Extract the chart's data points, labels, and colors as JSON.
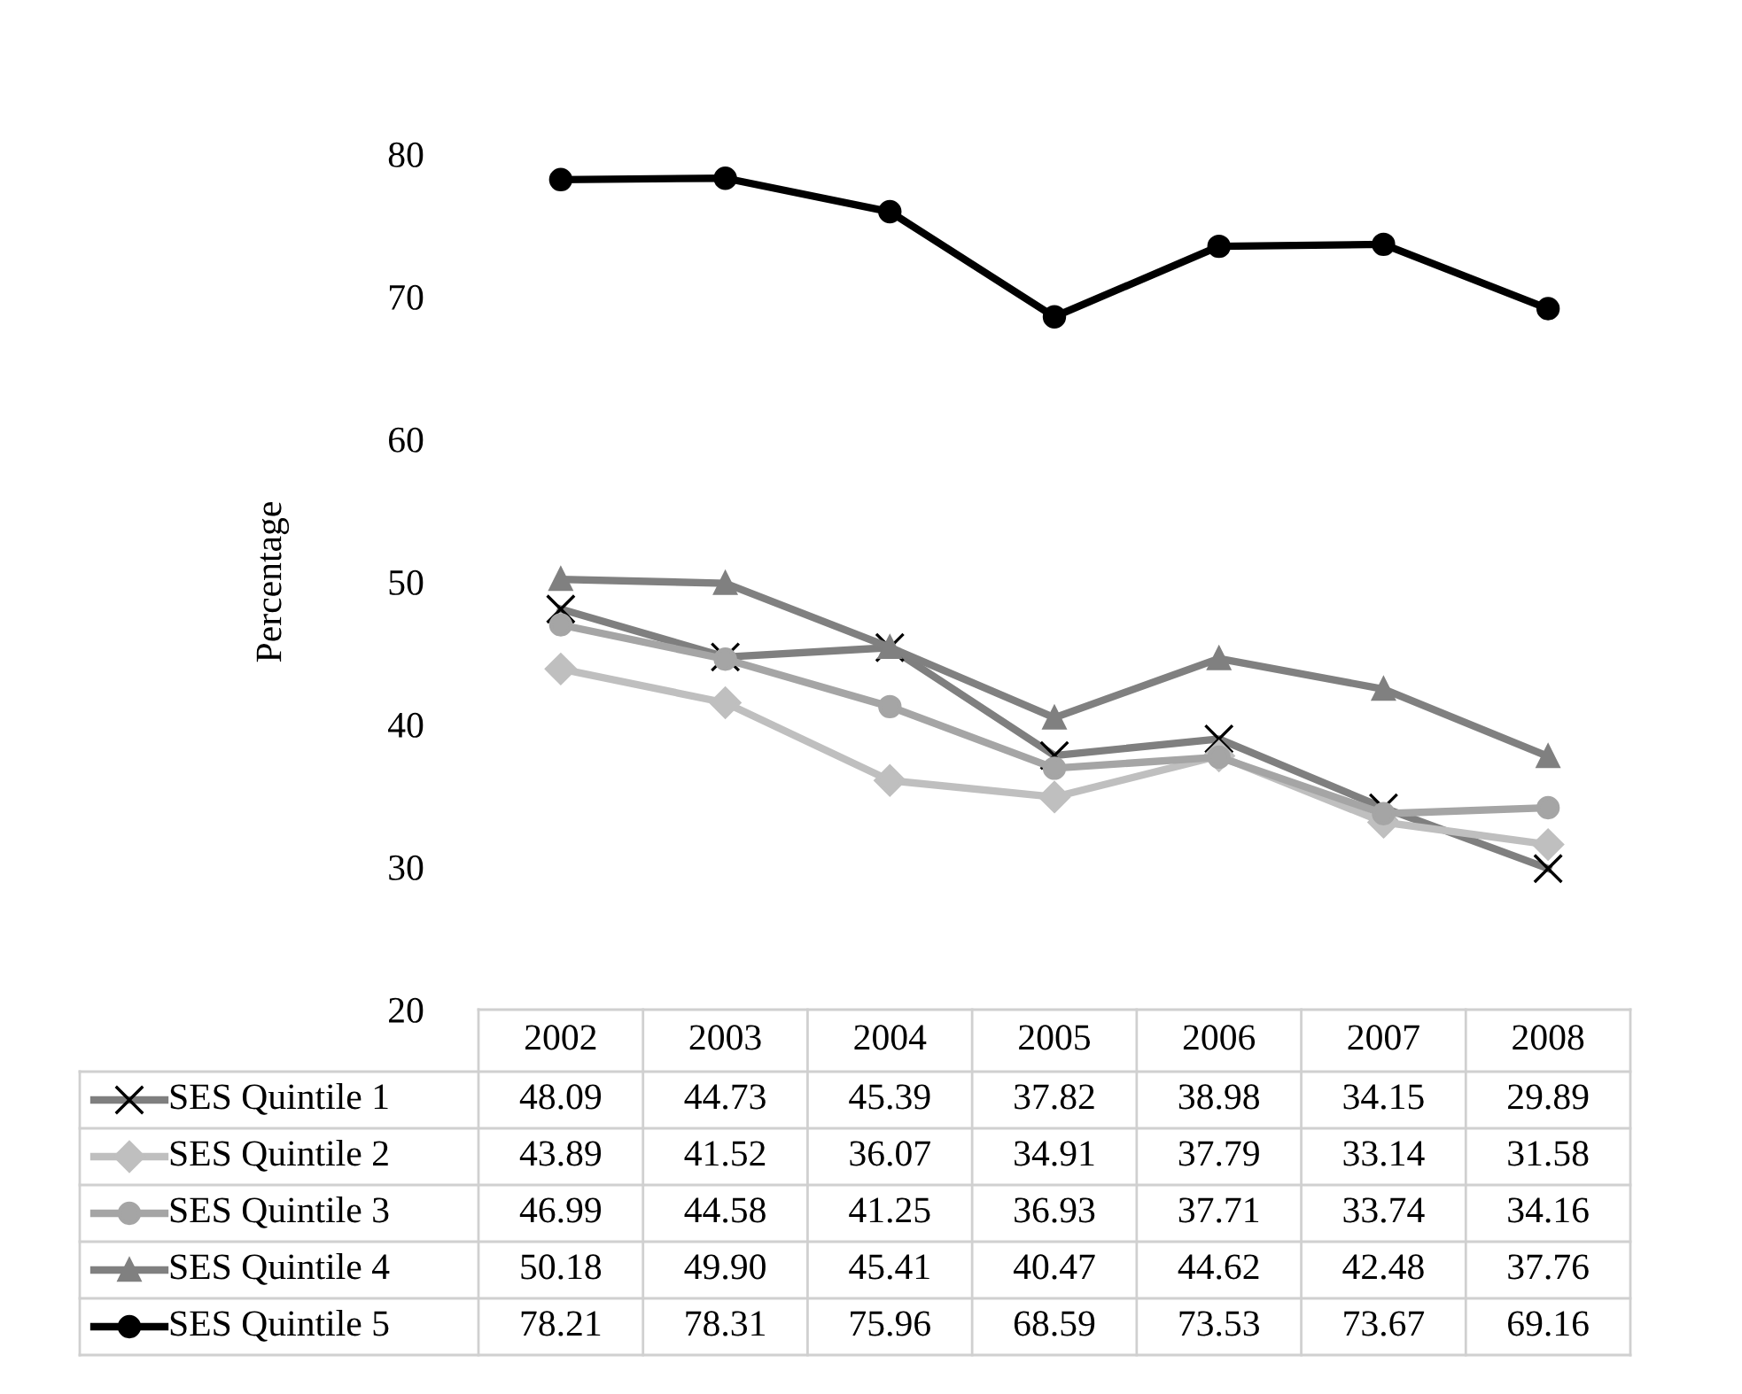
{
  "chart_data": {
    "type": "line",
    "ylabel": "Percentage",
    "categories": [
      "2002",
      "2003",
      "2004",
      "2005",
      "2006",
      "2007",
      "2008"
    ],
    "ylim": [
      20,
      80
    ],
    "yticks": [
      20,
      30,
      40,
      50,
      60,
      70,
      80
    ],
    "grid": false,
    "legend": "bottom",
    "series": [
      {
        "name": "SES Quintile 1",
        "color": "#7f7f7f",
        "marker": "cross",
        "values": [
          48.09,
          44.73,
          45.39,
          37.82,
          38.98,
          34.15,
          29.89
        ],
        "value_labels": [
          "48.09",
          "44.73",
          "45.39",
          "37.82",
          "38.98",
          "34.15",
          "29.89"
        ]
      },
      {
        "name": "SES Quintile 2",
        "color": "#bfbfbf",
        "marker": "diamond",
        "values": [
          43.89,
          41.52,
          36.07,
          34.91,
          37.79,
          33.14,
          31.58
        ],
        "value_labels": [
          "43.89",
          "41.52",
          "36.07",
          "34.91",
          "37.79",
          "33.14",
          "31.58"
        ]
      },
      {
        "name": "SES Quintile 3",
        "color": "#a5a5a5",
        "marker": "circle",
        "values": [
          46.99,
          44.58,
          41.25,
          36.93,
          37.71,
          33.74,
          34.16
        ],
        "value_labels": [
          "46.99",
          "44.58",
          "41.25",
          "36.93",
          "37.71",
          "33.74",
          "34.16"
        ]
      },
      {
        "name": "SES Quintile 4",
        "color": "#808080",
        "marker": "triangle",
        "values": [
          50.18,
          49.9,
          45.41,
          40.47,
          44.62,
          42.48,
          37.76
        ],
        "value_labels": [
          "50.18",
          "49.90",
          "45.41",
          "40.47",
          "44.62",
          "42.48",
          "37.76"
        ]
      },
      {
        "name": "SES Quintile 5",
        "color": "#000000",
        "marker": "circle",
        "values": [
          78.21,
          78.31,
          75.96,
          68.59,
          73.53,
          73.67,
          69.16
        ],
        "value_labels": [
          "78.21",
          "78.31",
          "75.96",
          "68.59",
          "73.53",
          "73.67",
          "69.16"
        ]
      }
    ]
  }
}
